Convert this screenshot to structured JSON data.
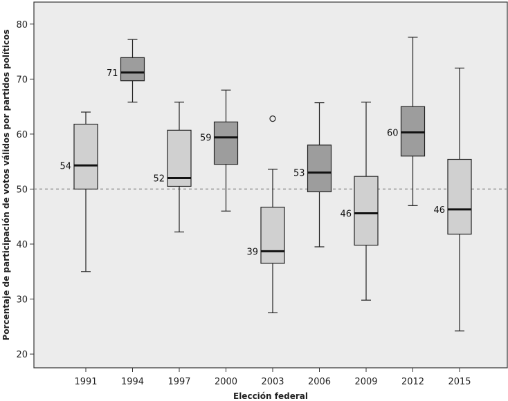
{
  "chart_data": {
    "type": "boxplot",
    "title": "",
    "xlabel": "Elección federal",
    "ylabel": "Porcentaje de participación de votos válidos por partidos políticos",
    "ylim": [
      17.5,
      84
    ],
    "yticks": [
      20,
      30,
      40,
      50,
      60,
      70,
      80
    ],
    "reference_line": {
      "y": 50,
      "style": "dashed"
    },
    "grid": false,
    "colors": {
      "plot_bg": "#ececec",
      "box_light": "#d0d0d0",
      "box_dark": "#9d9d9d",
      "ref_line": "#8a8a8a"
    },
    "boxes": [
      {
        "category": "1991",
        "min": 35,
        "q1": 50,
        "median": 54.3,
        "q3": 61.8,
        "max": 64,
        "label": "54",
        "shade": "light",
        "outliers": []
      },
      {
        "category": "1994",
        "min": 65.8,
        "q1": 69.7,
        "median": 71.2,
        "q3": 73.9,
        "max": 77.2,
        "label": "71",
        "shade": "dark",
        "outliers": []
      },
      {
        "category": "1997",
        "min": 42.2,
        "q1": 50.5,
        "median": 52,
        "q3": 60.7,
        "max": 65.8,
        "label": "52",
        "shade": "light",
        "outliers": []
      },
      {
        "category": "2000",
        "min": 46,
        "q1": 54.5,
        "median": 59.4,
        "q3": 62.2,
        "max": 68,
        "label": "59",
        "shade": "dark",
        "outliers": []
      },
      {
        "category": "2003",
        "min": 27.5,
        "q1": 36.5,
        "median": 38.7,
        "q3": 46.7,
        "max": 53.6,
        "label": "39",
        "shade": "light",
        "outliers": [
          62.8
        ]
      },
      {
        "category": "2006",
        "min": 39.5,
        "q1": 49.5,
        "median": 53,
        "q3": 58,
        "max": 65.7,
        "label": "53",
        "shade": "dark",
        "outliers": []
      },
      {
        "category": "2009",
        "min": 29.8,
        "q1": 39.8,
        "median": 45.6,
        "q3": 52.3,
        "max": 65.8,
        "label": "46",
        "shade": "light",
        "outliers": []
      },
      {
        "category": "2012",
        "min": 47,
        "q1": 56,
        "median": 60.3,
        "q3": 65,
        "max": 77.6,
        "label": "60",
        "shade": "dark",
        "outliers": []
      },
      {
        "category": "2015",
        "min": 24.2,
        "q1": 41.8,
        "median": 46.3,
        "q3": 55.4,
        "max": 72,
        "label": "46",
        "shade": "light",
        "outliers": []
      }
    ]
  }
}
